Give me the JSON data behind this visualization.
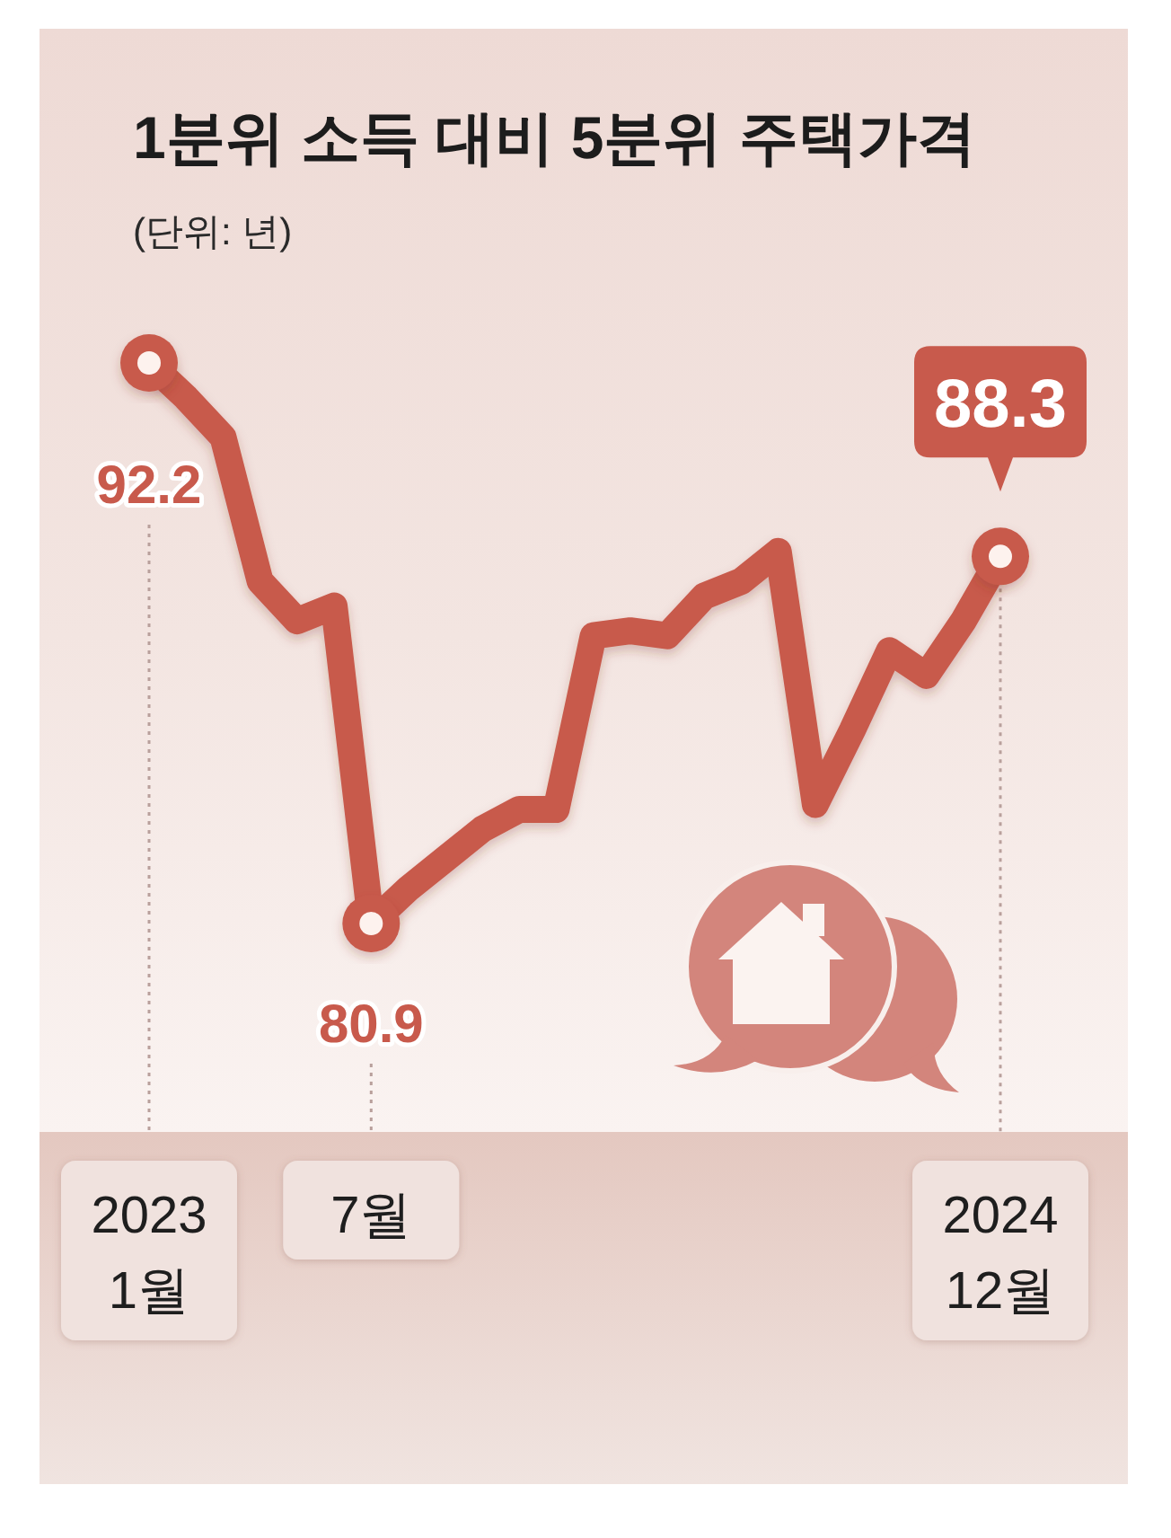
{
  "chart_data": {
    "type": "line",
    "title": "1분위 소득 대비 5분위 주택가격",
    "subtitle": "(단위: 년)",
    "categories": [
      "2023\n1월",
      null,
      null,
      null,
      null,
      null,
      "7월",
      null,
      null,
      null,
      null,
      null,
      null,
      null,
      null,
      null,
      null,
      null,
      null,
      null,
      null,
      null,
      null,
      "2024\n12월"
    ],
    "series": [
      {
        "color": "#c85a4c",
        "values": [
          92.2,
          91.5,
          90.7,
          87.8,
          87.0,
          87.3,
          80.9,
          81.6,
          82.2,
          82.8,
          83.2,
          83.2,
          86.7,
          86.8,
          86.7,
          87.5,
          87.8,
          88.4,
          83.3,
          84.8,
          86.4,
          85.9,
          87.0,
          88.3
        ],
        "value_labels": [
          "92.2",
          null,
          null,
          null,
          null,
          null,
          "80.9",
          null,
          null,
          null,
          null,
          null,
          null,
          null,
          null,
          null,
          null,
          null,
          null,
          null,
          null,
          null,
          null,
          "88.3"
        ]
      }
    ]
  }
}
